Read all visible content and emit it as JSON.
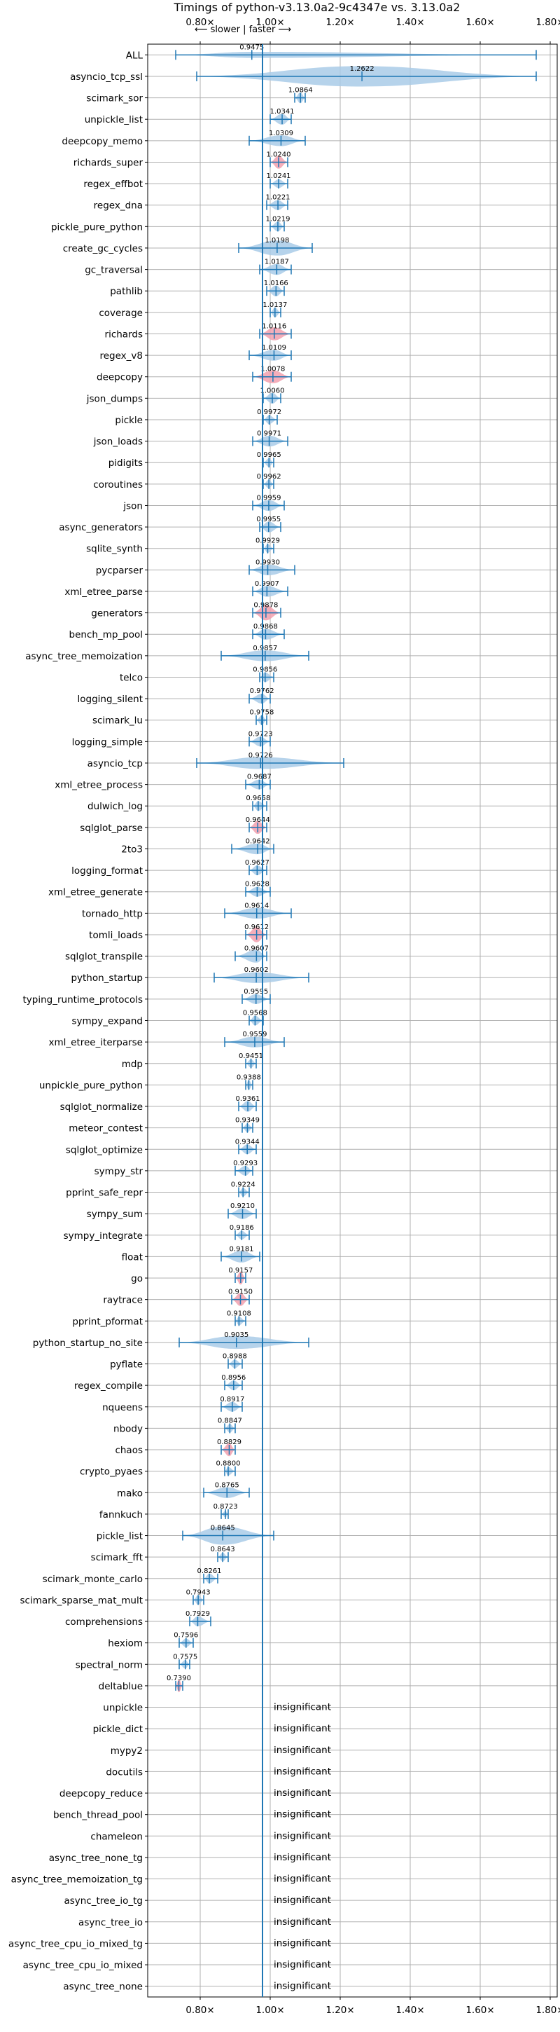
{
  "chart_data": {
    "type": "violin",
    "title": "Timings of python-v3.13.0a2-9c4347e vs. 3.13.0a2",
    "subtitle": "⟵ slower | faster ⟶",
    "x_ticks": [
      "0.80×",
      "1.00×",
      "1.20×",
      "1.40×",
      "1.60×",
      "1.80×"
    ],
    "x_tick_values": [
      0.8,
      1.0,
      1.2,
      1.4,
      1.6,
      1.8
    ],
    "xlim": [
      0.65,
      1.82
    ],
    "grid": true,
    "colors": {
      "violin": "#a9cbe8",
      "significant": "#f2a0ae",
      "accent": "#1f77b4"
    },
    "insignificant_text": "insignificant",
    "benchmarks": [
      {
        "name": "ALL",
        "value": 0.9475,
        "label": "0.9475",
        "lo": 0.73,
        "hi": 1.76,
        "width": 0.28,
        "sig": false
      },
      {
        "name": "asyncio_tcp_ssl",
        "value": 1.2622,
        "label": "1.2622",
        "lo": 0.79,
        "hi": 1.76,
        "width": 0.95,
        "sig": false
      },
      {
        "name": "scimark_sor",
        "value": 1.0864,
        "label": "1.0864",
        "lo": 1.07,
        "hi": 1.1,
        "width": 0.5,
        "sig": false
      },
      {
        "name": "unpickle_list",
        "value": 1.0341,
        "label": "1.0341",
        "lo": 1.0,
        "hi": 1.06,
        "width": 0.5,
        "sig": false
      },
      {
        "name": "deepcopy_memo",
        "value": 1.0309,
        "label": "1.0309",
        "lo": 0.94,
        "hi": 1.1,
        "width": 0.5,
        "sig": false
      },
      {
        "name": "richards_super",
        "value": 1.024,
        "label": "1.0240",
        "lo": 1.0,
        "hi": 1.05,
        "width": 0.6,
        "sig": true
      },
      {
        "name": "regex_effbot",
        "value": 1.0241,
        "label": "1.0241",
        "lo": 1.0,
        "hi": 1.05,
        "width": 0.4,
        "sig": false
      },
      {
        "name": "regex_dna",
        "value": 1.0221,
        "label": "1.0221",
        "lo": 0.99,
        "hi": 1.05,
        "width": 0.45,
        "sig": false
      },
      {
        "name": "pickle_pure_python",
        "value": 1.0219,
        "label": "1.0219",
        "lo": 1.0,
        "hi": 1.04,
        "width": 0.45,
        "sig": false
      },
      {
        "name": "create_gc_cycles",
        "value": 1.0198,
        "label": "1.0198",
        "lo": 0.91,
        "hi": 1.12,
        "width": 0.7,
        "sig": false
      },
      {
        "name": "gc_traversal",
        "value": 1.0187,
        "label": "1.0187",
        "lo": 0.97,
        "hi": 1.06,
        "width": 0.5,
        "sig": false
      },
      {
        "name": "pathlib",
        "value": 1.0166,
        "label": "1.0166",
        "lo": 0.99,
        "hi": 1.04,
        "width": 0.5,
        "sig": false
      },
      {
        "name": "coverage",
        "value": 1.0137,
        "label": "1.0137",
        "lo": 1.0,
        "hi": 1.03,
        "width": 0.45,
        "sig": false
      },
      {
        "name": "richards",
        "value": 1.0116,
        "label": "1.0116",
        "lo": 0.97,
        "hi": 1.06,
        "width": 0.6,
        "sig": true
      },
      {
        "name": "regex_v8",
        "value": 1.0109,
        "label": "1.0109",
        "lo": 0.94,
        "hi": 1.06,
        "width": 0.5,
        "sig": false
      },
      {
        "name": "deepcopy",
        "value": 1.0078,
        "label": "1.0078",
        "lo": 0.95,
        "hi": 1.06,
        "width": 0.6,
        "sig": true
      },
      {
        "name": "json_dumps",
        "value": 1.006,
        "label": "1.0060",
        "lo": 0.98,
        "hi": 1.03,
        "width": 0.5,
        "sig": false
      },
      {
        "name": "pickle",
        "value": 0.9972,
        "label": "0.9972",
        "lo": 0.98,
        "hi": 1.02,
        "width": 0.4,
        "sig": false
      },
      {
        "name": "json_loads",
        "value": 0.9971,
        "label": "0.9971",
        "lo": 0.95,
        "hi": 1.05,
        "width": 0.5,
        "sig": false
      },
      {
        "name": "pidigits",
        "value": 0.9965,
        "label": "0.9965",
        "lo": 0.98,
        "hi": 1.01,
        "width": 0.4,
        "sig": false
      },
      {
        "name": "coroutines",
        "value": 0.9962,
        "label": "0.9962",
        "lo": 0.98,
        "hi": 1.01,
        "width": 0.4,
        "sig": false
      },
      {
        "name": "json",
        "value": 0.9959,
        "label": "0.9959",
        "lo": 0.95,
        "hi": 1.04,
        "width": 0.5,
        "sig": false
      },
      {
        "name": "async_generators",
        "value": 0.9955,
        "label": "0.9955",
        "lo": 0.97,
        "hi": 1.03,
        "width": 0.5,
        "sig": false
      },
      {
        "name": "sqlite_synth",
        "value": 0.9929,
        "label": "0.9929",
        "lo": 0.98,
        "hi": 1.01,
        "width": 0.4,
        "sig": false
      },
      {
        "name": "pycparser",
        "value": 0.993,
        "label": "0.9930",
        "lo": 0.94,
        "hi": 1.07,
        "width": 0.5,
        "sig": false
      },
      {
        "name": "xml_etree_parse",
        "value": 0.9907,
        "label": "0.9907",
        "lo": 0.95,
        "hi": 1.05,
        "width": 0.5,
        "sig": false
      },
      {
        "name": "generators",
        "value": 0.9878,
        "label": "0.9878",
        "lo": 0.95,
        "hi": 1.03,
        "width": 0.7,
        "sig": true
      },
      {
        "name": "bench_mp_pool",
        "value": 0.9868,
        "label": "0.9868",
        "lo": 0.95,
        "hi": 1.04,
        "width": 0.5,
        "sig": false
      },
      {
        "name": "async_tree_memoization",
        "value": 0.9857,
        "label": "0.9857",
        "lo": 0.86,
        "hi": 1.11,
        "width": 0.5,
        "sig": false
      },
      {
        "name": "telco",
        "value": 0.9856,
        "label": "0.9856",
        "lo": 0.97,
        "hi": 1.01,
        "width": 0.45,
        "sig": false
      },
      {
        "name": "logging_silent",
        "value": 0.9762,
        "label": "0.9762",
        "lo": 0.94,
        "hi": 1.0,
        "width": 0.45,
        "sig": false
      },
      {
        "name": "scimark_lu",
        "value": 0.9758,
        "label": "0.9758",
        "lo": 0.96,
        "hi": 0.99,
        "width": 0.45,
        "sig": false
      },
      {
        "name": "logging_simple",
        "value": 0.9723,
        "label": "0.9723",
        "lo": 0.94,
        "hi": 1.0,
        "width": 0.45,
        "sig": false
      },
      {
        "name": "asyncio_tcp",
        "value": 0.9726,
        "label": "0.9726",
        "lo": 0.79,
        "hi": 1.21,
        "width": 0.55,
        "sig": false
      },
      {
        "name": "xml_etree_process",
        "value": 0.9687,
        "label": "0.9687",
        "lo": 0.93,
        "hi": 1.0,
        "width": 0.45,
        "sig": false
      },
      {
        "name": "dulwich_log",
        "value": 0.9658,
        "label": "0.9658",
        "lo": 0.95,
        "hi": 0.99,
        "width": 0.45,
        "sig": false
      },
      {
        "name": "sqlglot_parse",
        "value": 0.9644,
        "label": "0.9644",
        "lo": 0.94,
        "hi": 0.99,
        "width": 0.6,
        "sig": true
      },
      {
        "name": "2to3",
        "value": 0.9642,
        "label": "0.9642",
        "lo": 0.89,
        "hi": 1.01,
        "width": 0.5,
        "sig": false
      },
      {
        "name": "logging_format",
        "value": 0.9627,
        "label": "0.9627",
        "lo": 0.94,
        "hi": 0.99,
        "width": 0.45,
        "sig": false
      },
      {
        "name": "xml_etree_generate",
        "value": 0.9628,
        "label": "0.9628",
        "lo": 0.93,
        "hi": 1.0,
        "width": 0.45,
        "sig": false
      },
      {
        "name": "tornado_http",
        "value": 0.9614,
        "label": "0.9614",
        "lo": 0.87,
        "hi": 1.06,
        "width": 0.5,
        "sig": false
      },
      {
        "name": "tomli_loads",
        "value": 0.9612,
        "label": "0.9612",
        "lo": 0.93,
        "hi": 0.99,
        "width": 0.7,
        "sig": true
      },
      {
        "name": "sqlglot_transpile",
        "value": 0.9607,
        "label": "0.9607",
        "lo": 0.9,
        "hi": 0.99,
        "width": 0.6,
        "sig": false
      },
      {
        "name": "python_startup",
        "value": 0.9602,
        "label": "0.9602",
        "lo": 0.84,
        "hi": 1.11,
        "width": 0.5,
        "sig": false
      },
      {
        "name": "typing_runtime_protocols",
        "value": 0.9595,
        "label": "0.9595",
        "lo": 0.92,
        "hi": 1.0,
        "width": 0.45,
        "sig": false
      },
      {
        "name": "sympy_expand",
        "value": 0.9568,
        "label": "0.9568",
        "lo": 0.94,
        "hi": 0.98,
        "width": 0.45,
        "sig": false
      },
      {
        "name": "xml_etree_iterparse",
        "value": 0.9559,
        "label": "0.9559",
        "lo": 0.87,
        "hi": 1.04,
        "width": 0.5,
        "sig": false
      },
      {
        "name": "mdp",
        "value": 0.9451,
        "label": "0.9451",
        "lo": 0.93,
        "hi": 0.96,
        "width": 0.4,
        "sig": false
      },
      {
        "name": "unpickle_pure_python",
        "value": 0.9388,
        "label": "0.9388",
        "lo": 0.93,
        "hi": 0.95,
        "width": 0.45,
        "sig": false
      },
      {
        "name": "sqlglot_normalize",
        "value": 0.9361,
        "label": "0.9361",
        "lo": 0.91,
        "hi": 0.96,
        "width": 0.5,
        "sig": false
      },
      {
        "name": "meteor_contest",
        "value": 0.9349,
        "label": "0.9349",
        "lo": 0.92,
        "hi": 0.95,
        "width": 0.4,
        "sig": false
      },
      {
        "name": "sqlglot_optimize",
        "value": 0.9344,
        "label": "0.9344",
        "lo": 0.91,
        "hi": 0.96,
        "width": 0.45,
        "sig": false
      },
      {
        "name": "sympy_str",
        "value": 0.9293,
        "label": "0.9293",
        "lo": 0.9,
        "hi": 0.95,
        "width": 0.45,
        "sig": false
      },
      {
        "name": "pprint_safe_repr",
        "value": 0.9224,
        "label": "0.9224",
        "lo": 0.91,
        "hi": 0.94,
        "width": 0.4,
        "sig": false
      },
      {
        "name": "sympy_sum",
        "value": 0.921,
        "label": "0.9210",
        "lo": 0.88,
        "hi": 0.96,
        "width": 0.5,
        "sig": false
      },
      {
        "name": "sympy_integrate",
        "value": 0.9186,
        "label": "0.9186",
        "lo": 0.9,
        "hi": 0.94,
        "width": 0.4,
        "sig": false
      },
      {
        "name": "float",
        "value": 0.9181,
        "label": "0.9181",
        "lo": 0.86,
        "hi": 0.97,
        "width": 0.55,
        "sig": false
      },
      {
        "name": "go",
        "value": 0.9157,
        "label": "0.9157",
        "lo": 0.9,
        "hi": 0.93,
        "width": 0.6,
        "sig": true
      },
      {
        "name": "raytrace",
        "value": 0.915,
        "label": "0.9150",
        "lo": 0.89,
        "hi": 0.94,
        "width": 0.6,
        "sig": true
      },
      {
        "name": "pprint_pformat",
        "value": 0.9108,
        "label": "0.9108",
        "lo": 0.9,
        "hi": 0.93,
        "width": 0.4,
        "sig": false
      },
      {
        "name": "python_startup_no_site",
        "value": 0.9035,
        "label": "0.9035",
        "lo": 0.74,
        "hi": 1.11,
        "width": 0.6,
        "sig": false
      },
      {
        "name": "pyflate",
        "value": 0.8988,
        "label": "0.8988",
        "lo": 0.88,
        "hi": 0.92,
        "width": 0.4,
        "sig": false
      },
      {
        "name": "regex_compile",
        "value": 0.8956,
        "label": "0.8956",
        "lo": 0.87,
        "hi": 0.92,
        "width": 0.45,
        "sig": false
      },
      {
        "name": "nqueens",
        "value": 0.8917,
        "label": "0.8917",
        "lo": 0.86,
        "hi": 0.92,
        "width": 0.45,
        "sig": false
      },
      {
        "name": "nbody",
        "value": 0.8847,
        "label": "0.8847",
        "lo": 0.87,
        "hi": 0.9,
        "width": 0.4,
        "sig": false
      },
      {
        "name": "chaos",
        "value": 0.8829,
        "label": "0.8829",
        "lo": 0.86,
        "hi": 0.9,
        "width": 0.6,
        "sig": true
      },
      {
        "name": "crypto_pyaes",
        "value": 0.88,
        "label": "0.8800",
        "lo": 0.87,
        "hi": 0.9,
        "width": 0.4,
        "sig": false
      },
      {
        "name": "mako",
        "value": 0.8765,
        "label": "0.8765",
        "lo": 0.81,
        "hi": 0.94,
        "width": 0.5,
        "sig": false
      },
      {
        "name": "fannkuch",
        "value": 0.8723,
        "label": "0.8723",
        "lo": 0.86,
        "hi": 0.88,
        "width": 0.3,
        "sig": false
      },
      {
        "name": "pickle_list",
        "value": 0.8645,
        "label": "0.8645",
        "lo": 0.75,
        "hi": 1.01,
        "width": 0.85,
        "sig": false
      },
      {
        "name": "scimark_fft",
        "value": 0.8643,
        "label": "0.8643",
        "lo": 0.85,
        "hi": 0.88,
        "width": 0.4,
        "sig": false
      },
      {
        "name": "scimark_monte_carlo",
        "value": 0.8261,
        "label": "0.8261",
        "lo": 0.81,
        "hi": 0.85,
        "width": 0.45,
        "sig": false
      },
      {
        "name": "scimark_sparse_mat_mult",
        "value": 0.7943,
        "label": "0.7943",
        "lo": 0.78,
        "hi": 0.81,
        "width": 0.45,
        "sig": false
      },
      {
        "name": "comprehensions",
        "value": 0.7929,
        "label": "0.7929",
        "lo": 0.77,
        "hi": 0.83,
        "width": 0.45,
        "sig": false
      },
      {
        "name": "hexiom",
        "value": 0.7596,
        "label": "0.7596",
        "lo": 0.74,
        "hi": 0.78,
        "width": 0.4,
        "sig": false
      },
      {
        "name": "spectral_norm",
        "value": 0.7575,
        "label": "0.7575",
        "lo": 0.74,
        "hi": 0.77,
        "width": 0.4,
        "sig": false
      },
      {
        "name": "deltablue",
        "value": 0.739,
        "label": "0.7390",
        "lo": 0.73,
        "hi": 0.75,
        "width": 0.6,
        "sig": true
      },
      {
        "name": "unpickle",
        "insignificant": true
      },
      {
        "name": "pickle_dict",
        "insignificant": true
      },
      {
        "name": "mypy2",
        "insignificant": true
      },
      {
        "name": "docutils",
        "insignificant": true
      },
      {
        "name": "deepcopy_reduce",
        "insignificant": true
      },
      {
        "name": "bench_thread_pool",
        "insignificant": true
      },
      {
        "name": "chameleon",
        "insignificant": true
      },
      {
        "name": "async_tree_none_tg",
        "insignificant": true
      },
      {
        "name": "async_tree_memoization_tg",
        "insignificant": true
      },
      {
        "name": "async_tree_io_tg",
        "insignificant": true
      },
      {
        "name": "async_tree_io",
        "insignificant": true
      },
      {
        "name": "async_tree_cpu_io_mixed_tg",
        "insignificant": true
      },
      {
        "name": "async_tree_cpu_io_mixed",
        "insignificant": true
      },
      {
        "name": "async_tree_none",
        "insignificant": true
      }
    ]
  }
}
